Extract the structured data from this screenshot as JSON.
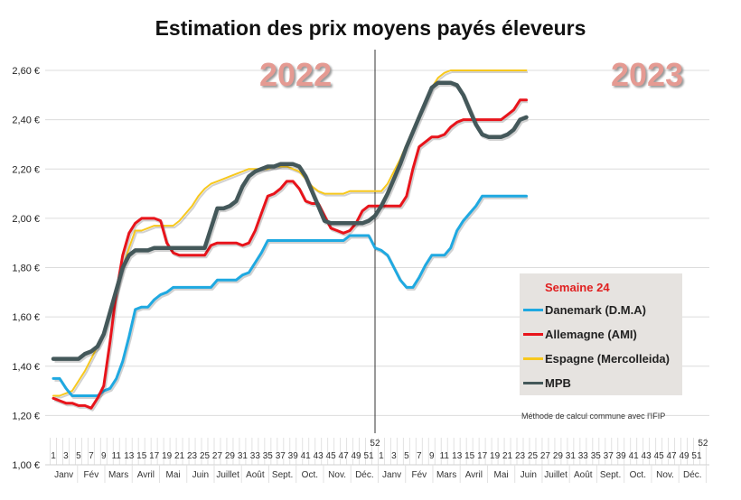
{
  "chart_data": {
    "type": "line",
    "title": "Estimation des prix moyens payés éleveurs",
    "year_labels": [
      "2022",
      "2023"
    ],
    "ylim": [
      1.0,
      2.6
    ],
    "y_ticks": [
      "1,00 €",
      "1,20 €",
      "1,40 €",
      "1,60 €",
      "1,80 €",
      "2,00 €",
      "2,20 €",
      "2,40 €",
      "2,60 €"
    ],
    "x_week_ticks": [
      "1",
      "3",
      "5",
      "7",
      "9",
      "11",
      "13",
      "15",
      "17",
      "19",
      "21",
      "23",
      "25",
      "27",
      "29",
      "31",
      "33",
      "35",
      "37",
      "39",
      "41",
      "43",
      "45",
      "47",
      "49",
      "51",
      "52"
    ],
    "months": [
      "Janv",
      "Fév",
      "Mars",
      "Avril",
      "Mai",
      "Juin",
      "Juillet",
      "Août",
      "Sept.",
      "Oct.",
      "Nov.",
      "Déc."
    ],
    "x_description": "weeks 1–52 of 2022 followed by weeks 1–52 of 2023; data through 2023 week 24",
    "grid": true,
    "legend_title": "Semaine 24",
    "legend_position": "bottom-right",
    "note": "Méthode de calcul commune avec l'IFIP",
    "series": [
      {
        "name": "Danemark (D.M.A)",
        "color": "#1fa9e1",
        "width": 3,
        "values": [
          1.35,
          1.35,
          1.31,
          1.28,
          1.28,
          1.28,
          1.28,
          1.28,
          1.3,
          1.31,
          1.35,
          1.42,
          1.52,
          1.63,
          1.64,
          1.64,
          1.67,
          1.69,
          1.7,
          1.72,
          1.72,
          1.72,
          1.72,
          1.72,
          1.72,
          1.72,
          1.75,
          1.75,
          1.75,
          1.75,
          1.77,
          1.78,
          1.82,
          1.86,
          1.91,
          1.91,
          1.91,
          1.91,
          1.91,
          1.91,
          1.91,
          1.91,
          1.91,
          1.91,
          1.91,
          1.91,
          1.91,
          1.93,
          1.93,
          1.93,
          1.93,
          1.88,
          1.87,
          1.85,
          1.8,
          1.75,
          1.72,
          1.72,
          1.76,
          1.81,
          1.85,
          1.85,
          1.85,
          1.88,
          1.95,
          1.99,
          2.02,
          2.05,
          2.09,
          2.09,
          2.09,
          2.09,
          2.09,
          2.09,
          2.09,
          2.09
        ]
      },
      {
        "name": "Allemagne (AMI)",
        "color": "#e8141b",
        "width": 3,
        "values": [
          1.27,
          1.26,
          1.25,
          1.25,
          1.24,
          1.24,
          1.23,
          1.27,
          1.32,
          1.5,
          1.7,
          1.85,
          1.94,
          1.98,
          2.0,
          2.0,
          2.0,
          1.99,
          1.9,
          1.86,
          1.85,
          1.85,
          1.85,
          1.85,
          1.85,
          1.89,
          1.9,
          1.9,
          1.9,
          1.9,
          1.89,
          1.9,
          1.95,
          2.02,
          2.09,
          2.1,
          2.12,
          2.15,
          2.15,
          2.12,
          2.07,
          2.06,
          2.06,
          2.01,
          1.96,
          1.95,
          1.94,
          1.95,
          1.98,
          2.03,
          2.05,
          2.05,
          2.05,
          2.05,
          2.05,
          2.05,
          2.09,
          2.2,
          2.29,
          2.31,
          2.33,
          2.33,
          2.34,
          2.37,
          2.39,
          2.4,
          2.4,
          2.4,
          2.4,
          2.4,
          2.4,
          2.4,
          2.42,
          2.44,
          2.48,
          2.48
        ]
      },
      {
        "name": "Espagne (Mercolleida)",
        "color": "#f7c81e",
        "width": 2,
        "values": [
          1.28,
          1.28,
          1.29,
          1.3,
          1.34,
          1.38,
          1.43,
          1.48,
          1.54,
          1.62,
          1.7,
          1.8,
          1.88,
          1.95,
          1.95,
          1.96,
          1.97,
          1.97,
          1.97,
          1.97,
          1.99,
          2.02,
          2.05,
          2.09,
          2.12,
          2.14,
          2.15,
          2.16,
          2.17,
          2.18,
          2.19,
          2.2,
          2.2,
          2.2,
          2.2,
          2.21,
          2.21,
          2.21,
          2.2,
          2.19,
          2.16,
          2.13,
          2.11,
          2.1,
          2.1,
          2.1,
          2.1,
          2.11,
          2.11,
          2.11,
          2.11,
          2.11,
          2.11,
          2.14,
          2.19,
          2.24,
          2.3,
          2.36,
          2.42,
          2.47,
          2.53,
          2.57,
          2.59,
          2.6,
          2.6,
          2.6,
          2.6,
          2.6,
          2.6,
          2.6,
          2.6,
          2.6,
          2.6,
          2.6,
          2.6,
          2.6
        ]
      },
      {
        "name": "MPB",
        "color": "#44585a",
        "width": 4.5,
        "values": [
          1.43,
          1.43,
          1.43,
          1.43,
          1.43,
          1.45,
          1.46,
          1.48,
          1.53,
          1.62,
          1.71,
          1.8,
          1.85,
          1.87,
          1.87,
          1.87,
          1.88,
          1.88,
          1.88,
          1.88,
          1.88,
          1.88,
          1.88,
          1.88,
          1.88,
          1.96,
          2.04,
          2.04,
          2.05,
          2.07,
          2.13,
          2.17,
          2.19,
          2.2,
          2.21,
          2.21,
          2.22,
          2.22,
          2.22,
          2.21,
          2.17,
          2.11,
          2.05,
          1.99,
          1.98,
          1.98,
          1.98,
          1.98,
          1.98,
          1.98,
          1.99,
          2.01,
          2.05,
          2.1,
          2.16,
          2.22,
          2.29,
          2.35,
          2.41,
          2.47,
          2.53,
          2.55,
          2.55,
          2.55,
          2.54,
          2.5,
          2.44,
          2.38,
          2.34,
          2.33,
          2.33,
          2.33,
          2.34,
          2.36,
          2.4,
          2.41
        ]
      }
    ]
  }
}
